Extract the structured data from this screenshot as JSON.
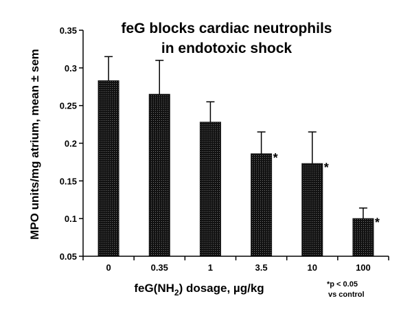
{
  "chart_data": {
    "type": "bar",
    "title_line1": "feG blocks cardiac neutrophils",
    "title_line2": "in endotoxic shock",
    "xlabel_main": "feG(NH",
    "xlabel_sub": "2",
    "xlabel_rest": ") dosage, µg/kg",
    "ylabel": "MPO units/mg atrium, mean ± sem",
    "categories": [
      "0",
      "0.35",
      "1",
      "3.5",
      "10",
      "100"
    ],
    "values": [
      0.283,
      0.265,
      0.228,
      0.186,
      0.173,
      0.1
    ],
    "errors": [
      0.032,
      0.045,
      0.027,
      0.029,
      0.042,
      0.014
    ],
    "significant": [
      false,
      false,
      false,
      true,
      true,
      true
    ],
    "significance_marker": "*",
    "ylim": [
      0.05,
      0.35
    ],
    "yticks": [
      "0.05",
      "0.1",
      "0.15",
      "0.2",
      "0.25",
      "0.3",
      "0.35"
    ],
    "footnote_line1": "*p < 0.05",
    "footnote_line2": "vs control",
    "bar_color": "#111111"
  }
}
